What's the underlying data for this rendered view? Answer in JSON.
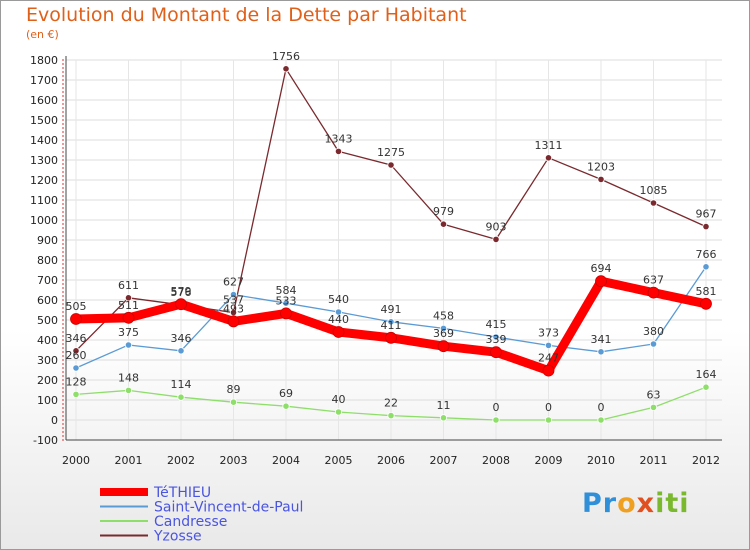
{
  "chart_data": {
    "type": "line",
    "title": "Evolution du Montant de la Dette par Habitant",
    "subtitle": "(en €)",
    "x": [
      "2000",
      "2001",
      "2002",
      "2003",
      "2004",
      "2005",
      "2006",
      "2007",
      "2008",
      "2009",
      "2010",
      "2011",
      "2012"
    ],
    "ylim": [
      -100,
      1800
    ],
    "yticks": [
      -100,
      0,
      100,
      200,
      300,
      400,
      500,
      600,
      700,
      800,
      900,
      1000,
      1100,
      1200,
      1300,
      1400,
      1500,
      1600,
      1700,
      1800
    ],
    "grid": true,
    "legend": "bottom-left",
    "series": [
      {
        "name": "TéTHIEU",
        "color": "#ff0000",
        "values": [
          505,
          511,
          579,
          493,
          533,
          440,
          411,
          369,
          339,
          247,
          694,
          637,
          581
        ],
        "labels": [
          "505",
          "511",
          "579",
          "493",
          "533",
          "440",
          "411",
          "369",
          "339",
          "247",
          "694",
          "637",
          "581"
        ]
      },
      {
        "name": "Saint-Vincent-de-Paul",
        "color": "#5b9bd5",
        "values": [
          260,
          375,
          346,
          627,
          584,
          540,
          491,
          458,
          415,
          373,
          341,
          380,
          766
        ],
        "labels": [
          "260",
          "375",
          "346",
          "627",
          "584",
          "540",
          "491",
          "458",
          "415",
          "373",
          "341",
          "380",
          "766"
        ]
      },
      {
        "name": "Candresse",
        "color": "#8ede6a",
        "values": [
          128,
          148,
          114,
          89,
          69,
          40,
          22,
          11,
          0,
          0,
          0,
          63,
          164
        ],
        "labels": [
          "128",
          "148",
          "114",
          "89",
          "69",
          "40",
          "22",
          "11",
          "0",
          "0",
          "0",
          "63",
          "164"
        ]
      },
      {
        "name": "Yzosse",
        "color": "#7a2a2e",
        "values": [
          346,
          611,
          576,
          537,
          1756,
          1343,
          1275,
          979,
          903,
          1311,
          1203,
          1085,
          967
        ],
        "labels": [
          "346",
          "611",
          "576",
          "537",
          "1756",
          "1343",
          "1275",
          "979",
          "903",
          "1311",
          "1203",
          "1085",
          "967"
        ]
      }
    ]
  },
  "logo": {
    "p1": "Pr",
    "p2": "o",
    "p3": "x",
    "p4": "iti"
  }
}
